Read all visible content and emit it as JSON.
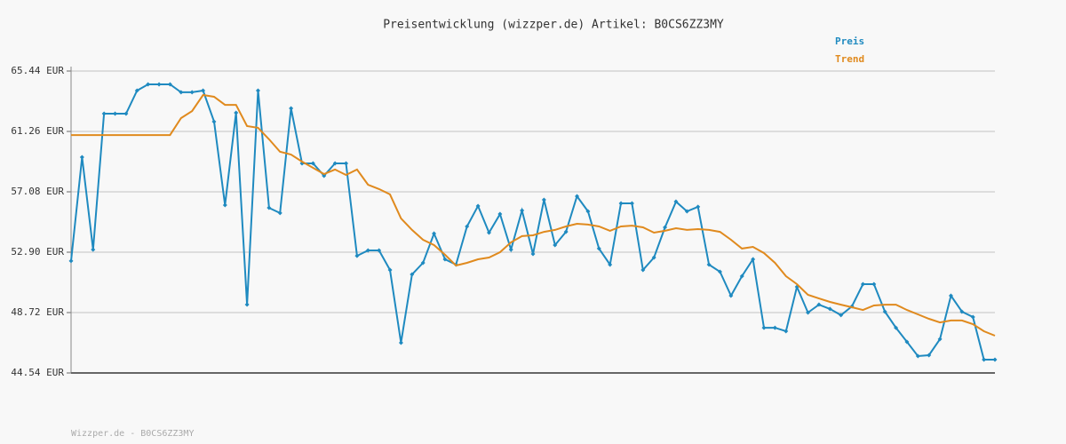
{
  "chart_data": {
    "type": "line",
    "title": "Preisentwicklung (wizzper.de) Artikel: B0CS6ZZ3MY",
    "footer": "Wizzper.de - B0CS6ZZ3MY",
    "categories": [
      null,
      null,
      null,
      null,
      null,
      null,
      null,
      null,
      null,
      null,
      null,
      null,
      null,
      null,
      null,
      null,
      null,
      null,
      null,
      null,
      null,
      null,
      null,
      null,
      null,
      null,
      null,
      null,
      null,
      null,
      null,
      null,
      null,
      null,
      null,
      null,
      null,
      null,
      null,
      null,
      null,
      null,
      null,
      null,
      null,
      null,
      null,
      null,
      null,
      null,
      null,
      null,
      null,
      null,
      null,
      null,
      null,
      null,
      null,
      null,
      null,
      null,
      null,
      null,
      null,
      null,
      null,
      null,
      null,
      null,
      null,
      null,
      null,
      null,
      null,
      null,
      null,
      null,
      null,
      null,
      null,
      null,
      null,
      null,
      null
    ],
    "series": [
      {
        "name": "Preis",
        "color": "#1f8ac0",
        "marker": "diamond",
        "values": [
          52.29,
          59.48,
          53.08,
          62.49,
          62.49,
          62.49,
          64.09,
          64.52,
          64.52,
          64.52,
          63.97,
          63.97,
          64.09,
          61.94,
          56.16,
          62.55,
          49.27,
          64.09,
          55.97,
          55.61,
          62.86,
          59.05,
          59.05,
          58.19,
          59.05,
          59.05,
          52.65,
          53.02,
          53.02,
          51.67,
          46.63,
          51.36,
          52.16,
          54.19,
          52.41,
          52.04,
          54.68,
          56.1,
          54.25,
          55.54,
          53.08,
          55.79,
          52.78,
          56.53,
          53.39,
          54.31,
          56.77,
          55.73,
          53.15,
          52.04,
          56.28,
          56.28,
          51.67,
          52.53,
          54.62,
          56.4,
          55.73,
          56.04,
          52.04,
          51.55,
          49.89,
          51.24,
          52.41,
          47.67,
          47.67,
          47.43,
          50.5,
          48.72,
          49.27,
          48.97,
          48.54,
          49.15,
          50.69,
          50.69,
          48.78,
          47.67,
          46.69,
          45.71,
          45.77,
          46.88,
          49.89,
          48.78,
          48.41,
          45.46,
          45.46
        ]
      },
      {
        "name": "Trend",
        "color": "#e08a1e",
        "values": [
          61.01,
          61.01,
          61.01,
          61.01,
          61.01,
          61.01,
          61.01,
          61.01,
          61.01,
          61.01,
          62.18,
          62.67,
          63.78,
          63.66,
          63.1,
          63.1,
          61.63,
          61.51,
          60.71,
          59.85,
          59.66,
          59.17,
          58.74,
          58.31,
          58.62,
          58.25,
          58.62,
          57.57,
          57.27,
          56.9,
          55.24,
          54.44,
          53.76,
          53.39,
          52.72,
          51.98,
          52.16,
          52.41,
          52.53,
          52.9,
          53.58,
          54.01,
          54.07,
          54.31,
          54.44,
          54.68,
          54.87,
          54.81,
          54.68,
          54.38,
          54.68,
          54.74,
          54.62,
          54.25,
          54.38,
          54.56,
          54.44,
          54.5,
          54.44,
          54.31,
          53.76,
          53.15,
          53.27,
          52.84,
          52.16,
          51.24,
          50.69,
          49.95,
          49.7,
          49.46,
          49.27,
          49.09,
          48.9,
          49.21,
          49.27,
          49.27,
          48.9,
          48.6,
          48.29,
          48.04,
          48.17,
          48.17,
          47.92,
          47.43,
          47.12
        ]
      }
    ],
    "ylim": [
      44.54,
      65.44
    ],
    "yticks": [
      {
        "value": 44.54,
        "label": "44.54 EUR"
      },
      {
        "value": 48.72,
        "label": "48.72 EUR"
      },
      {
        "value": 52.9,
        "label": "52.90 EUR"
      },
      {
        "value": 57.08,
        "label": "57.08 EUR"
      },
      {
        "value": 61.26,
        "label": "61.26 EUR"
      },
      {
        "value": 65.44,
        "label": "65.44 EUR"
      }
    ],
    "grid": true,
    "legend": "top-right"
  }
}
